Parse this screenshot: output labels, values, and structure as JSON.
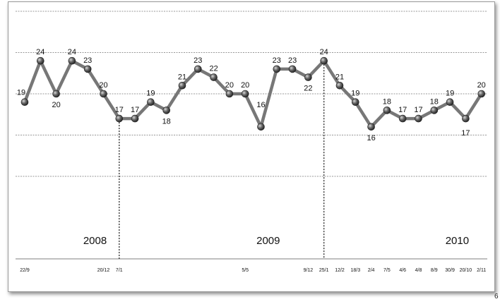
{
  "chart_data": {
    "type": "line",
    "title": "",
    "xlabel": "",
    "ylabel": "",
    "ylim": [
      0,
      30
    ],
    "grid": true,
    "tick_labels": [
      {
        "label": "22/9",
        "index": 0
      },
      {
        "label": "20/12",
        "index": 5
      },
      {
        "label": "7/1",
        "index": 6
      },
      {
        "label": "5/5",
        "index": 14
      },
      {
        "label": "9/12",
        "index": 18
      },
      {
        "label": "25/1",
        "index": 19
      },
      {
        "label": "12/2",
        "index": 20
      },
      {
        "label": "18/3",
        "index": 21
      },
      {
        "label": "2/4",
        "index": 22
      },
      {
        "label": "7/5",
        "index": 23
      },
      {
        "label": "4/6",
        "index": 24
      },
      {
        "label": "4/8",
        "index": 25
      },
      {
        "label": "8/9",
        "index": 26
      },
      {
        "label": "30/9",
        "index": 27
      },
      {
        "label": "20/10",
        "index": 28
      },
      {
        "label": "2/11",
        "index": 29
      }
    ],
    "series": [
      {
        "values": [
          19,
          24,
          20,
          24,
          23,
          20,
          17,
          17,
          19,
          18,
          21,
          23,
          22,
          20,
          20,
          16,
          23,
          23,
          22,
          24,
          21,
          19,
          16,
          18,
          17,
          17,
          18,
          19,
          17,
          20
        ],
        "color": "#777777"
      }
    ],
    "annotations": [
      {
        "text": "2008",
        "index": 5
      },
      {
        "text": "2009",
        "index": 16
      },
      {
        "text": "2010",
        "index": 28
      }
    ],
    "separators": [
      6,
      19
    ]
  },
  "page_number": "6"
}
